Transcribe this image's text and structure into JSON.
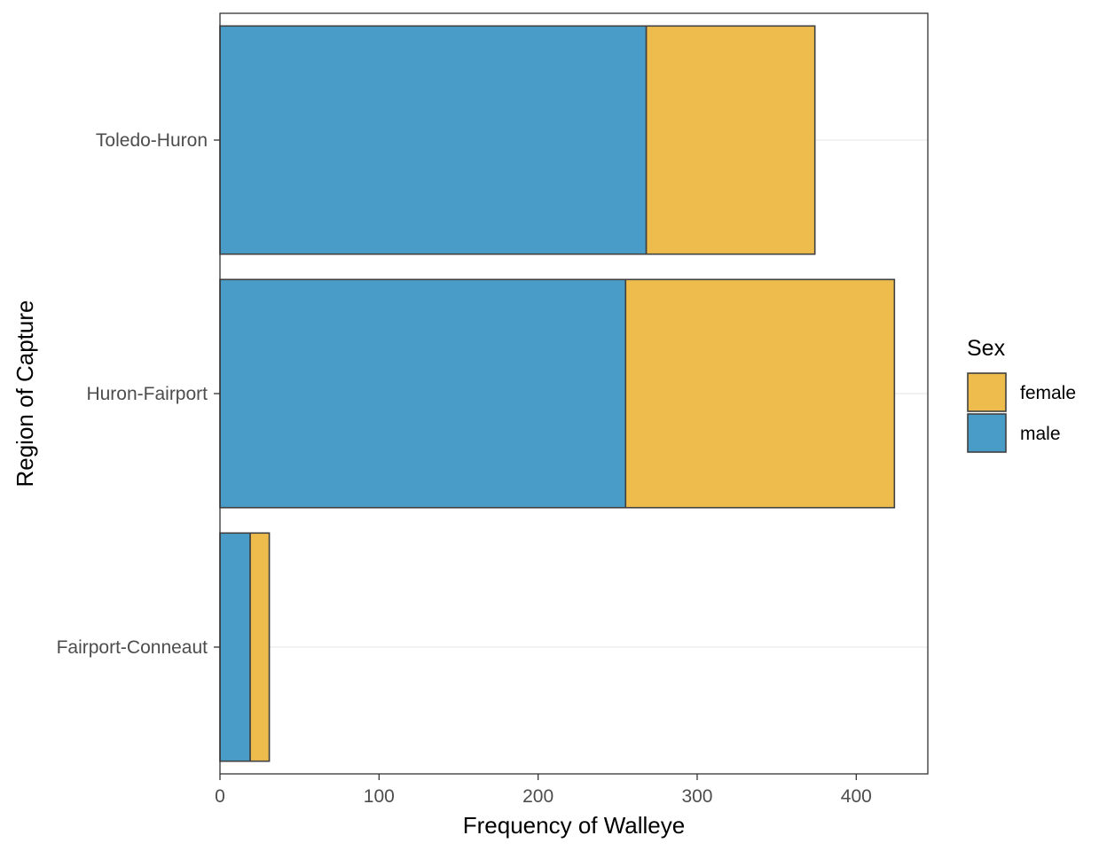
{
  "chart_data": {
    "type": "bar",
    "orientation": "horizontal",
    "stacked": true,
    "categories": [
      "Fairport-Conneaut",
      "Huron-Fairport",
      "Toledo-Huron"
    ],
    "series": [
      {
        "name": "male",
        "values": [
          19,
          255,
          268
        ],
        "color": "#4a9cc8"
      },
      {
        "name": "female",
        "values": [
          12,
          169,
          106
        ],
        "color": "#edbc4d"
      }
    ],
    "xlabel": "Frequency of Walleye",
    "ylabel": "Region of Capture",
    "xlim": [
      0,
      445
    ],
    "xticks": [
      0,
      100,
      200,
      300,
      400
    ],
    "grid": true,
    "legend": {
      "title": "Sex",
      "position": "right",
      "entries": [
        {
          "label": "female",
          "color": "#edbc4d"
        },
        {
          "label": "male",
          "color": "#4a9cc8"
        }
      ]
    },
    "bar_outline_color": "#404040",
    "panel_border_color": "#333333",
    "grid_color": "#ebebeb"
  }
}
